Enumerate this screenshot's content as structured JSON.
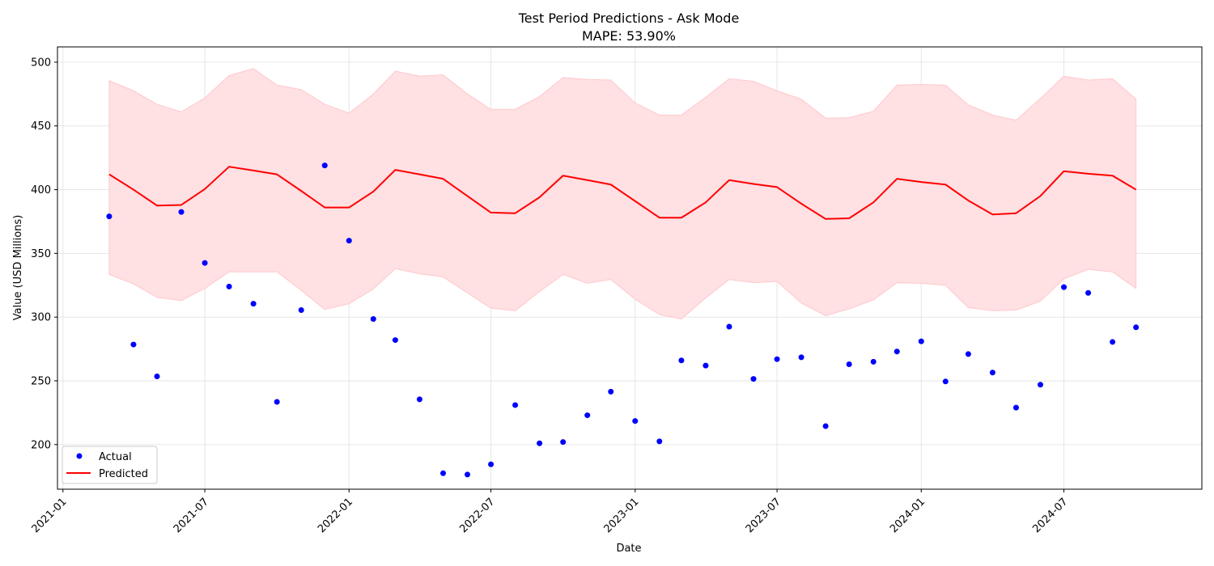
{
  "chart_data": {
    "type": "line",
    "title": "Test Period Predictions - Ask Mode",
    "subtitle": "MAPE: 53.90%",
    "xlabel": "Date",
    "ylabel": "Value (USD Millions)",
    "xlim": [
      "2020-12-25",
      "2024-12-24"
    ],
    "ylim": [
      165,
      512
    ],
    "grid": true,
    "legend_position": "lower-left",
    "x_ticks": [
      "2021-01",
      "2021-07",
      "2022-01",
      "2022-07",
      "2023-01",
      "2023-07",
      "2024-01",
      "2024-07"
    ],
    "y_ticks": [
      200,
      250,
      300,
      350,
      400,
      450,
      500
    ],
    "x": [
      "2021-03",
      "2021-04",
      "2021-05",
      "2021-06",
      "2021-07",
      "2021-08",
      "2021-09",
      "2021-10",
      "2021-11",
      "2021-12",
      "2022-01",
      "2022-02",
      "2022-03",
      "2022-04",
      "2022-05",
      "2022-06",
      "2022-07",
      "2022-08",
      "2022-09",
      "2022-10",
      "2022-11",
      "2022-12",
      "2023-01",
      "2023-02",
      "2023-03",
      "2023-04",
      "2023-05",
      "2023-06",
      "2023-07",
      "2023-08",
      "2023-09",
      "2023-10",
      "2023-11",
      "2023-12",
      "2024-01",
      "2024-02",
      "2024-03",
      "2024-04",
      "2024-05",
      "2024-06",
      "2024-07",
      "2024-08",
      "2024-09",
      "2024-10"
    ],
    "series": [
      {
        "name": "Actual",
        "style": "scatter",
        "color": "#0000ff",
        "values": [
          379,
          278.5,
          253.5,
          382.5,
          342.5,
          324,
          310.5,
          233.5,
          305.5,
          419,
          360,
          298.5,
          282,
          235.5,
          177.5,
          176.5,
          184.5,
          231,
          201,
          202,
          223,
          241.5,
          218.5,
          202.5,
          266,
          262,
          292.5,
          251.5,
          267,
          268.5,
          214.5,
          263,
          265,
          273,
          281,
          249.5,
          271,
          256.5,
          229,
          247,
          323.5,
          319,
          280.5,
          292
        ]
      },
      {
        "name": "Predicted",
        "style": "line",
        "color": "#ff0000",
        "values": [
          412,
          400,
          387.5,
          388,
          400.5,
          418,
          415,
          412,
          399,
          386,
          386,
          398.5,
          415.5,
          412,
          408.5,
          395,
          382,
          381.5,
          394,
          411,
          407.5,
          404,
          391,
          378,
          378,
          390,
          407.5,
          404.5,
          402,
          389,
          377,
          377.5,
          390,
          408.5,
          406,
          404,
          391.5,
          380.5,
          381.5,
          395,
          414.5,
          412.5,
          411,
          400
        ],
        "upper": [
          485.5,
          477.5,
          467,
          461,
          472,
          489.5,
          495,
          482,
          478.5,
          467,
          460,
          475,
          493,
          489,
          490,
          475,
          463,
          463,
          473,
          488,
          486.5,
          486,
          468,
          458.5,
          458.5,
          472.5,
          487,
          485,
          477.5,
          471,
          456,
          456.5,
          461.5,
          482,
          482.5,
          482,
          466.5,
          458.5,
          454.5,
          471.5,
          489,
          486,
          487,
          471
        ],
        "lower": [
          333.5,
          326,
          315.5,
          313,
          322.5,
          335.5,
          335.5,
          335.5,
          321,
          306,
          310.5,
          322,
          338,
          334,
          331.5,
          319,
          307,
          305,
          320,
          333.5,
          326.5,
          329.5,
          314,
          302,
          298.5,
          315,
          329.5,
          327,
          328,
          311,
          301,
          306.5,
          313.5,
          327,
          326.5,
          325,
          307.5,
          305,
          305.5,
          312.5,
          330,
          337.5,
          335.5,
          322.5
        ]
      }
    ],
    "band_color": "#ffe0e3",
    "band_edge_color": "#ffc8cc"
  }
}
